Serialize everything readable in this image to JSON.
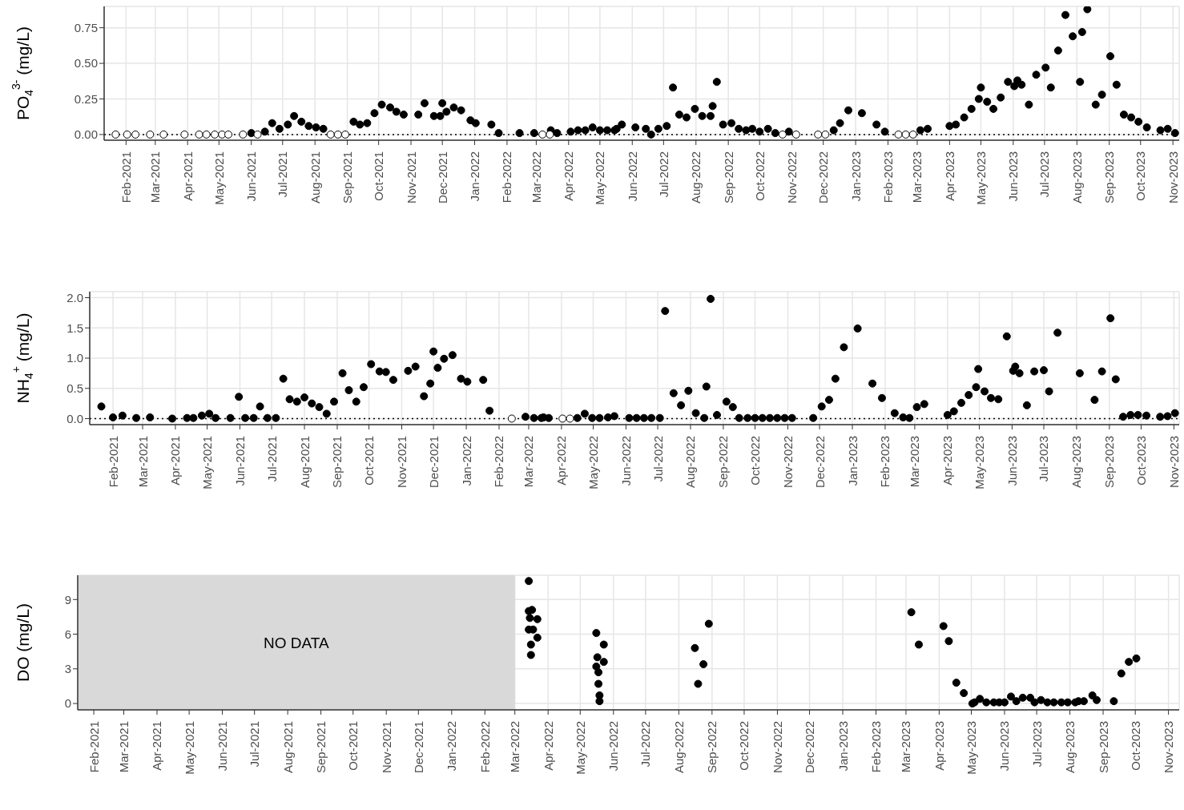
{
  "chart_data": [
    {
      "type": "scatter",
      "ylabel": "PO$_{4}$$^{3-}$ (mg/L)",
      "marker": "circle",
      "grid": true,
      "xlim": [
        "2021-01-11",
        "2023-11-07"
      ],
      "ylim": [
        -0.04,
        0.9
      ],
      "yticks": [
        {
          "value": 0,
          "label": "0.00"
        },
        {
          "value": 0.25,
          "label": "0.25"
        },
        {
          "value": 0.5,
          "label": "0.50"
        },
        {
          "value": 0.75,
          "label": "0.75"
        }
      ],
      "xticks": [
        {
          "value": "2021-02-01",
          "label": "Feb-2021"
        },
        {
          "value": "2021-03-01",
          "label": "Mar-2021"
        },
        {
          "value": "2021-04-01",
          "label": "Apr-2021"
        },
        {
          "value": "2021-05-01",
          "label": "May-2021"
        },
        {
          "value": "2021-06-01",
          "label": "Jun-2021"
        },
        {
          "value": "2021-07-01",
          "label": "Jul-2021"
        },
        {
          "value": "2021-08-01",
          "label": "Aug-2021"
        },
        {
          "value": "2021-09-01",
          "label": "Sep-2021"
        },
        {
          "value": "2021-10-01",
          "label": "Oct-2021"
        },
        {
          "value": "2021-11-01",
          "label": "Nov-2021"
        },
        {
          "value": "2021-12-01",
          "label": "Dec-2021"
        },
        {
          "value": "2022-01-01",
          "label": "Jan-2022"
        },
        {
          "value": "2022-02-01",
          "label": "Feb-2022"
        },
        {
          "value": "2022-03-01",
          "label": "Mar-2022"
        },
        {
          "value": "2022-04-01",
          "label": "Apr-2022"
        },
        {
          "value": "2022-05-01",
          "label": "May-2022"
        },
        {
          "value": "2022-06-01",
          "label": "Jun-2022"
        },
        {
          "value": "2022-07-01",
          "label": "Jul-2022"
        },
        {
          "value": "2022-08-01",
          "label": "Aug-2022"
        },
        {
          "value": "2022-09-01",
          "label": "Sep-2022"
        },
        {
          "value": "2022-10-01",
          "label": "Oct-2022"
        },
        {
          "value": "2022-11-01",
          "label": "Nov-2022"
        },
        {
          "value": "2022-12-01",
          "label": "Dec-2022"
        },
        {
          "value": "2023-01-01",
          "label": "Jan-2023"
        },
        {
          "value": "2023-02-01",
          "label": "Feb-2023"
        },
        {
          "value": "2023-03-01",
          "label": "Mar-2023"
        },
        {
          "value": "2023-04-01",
          "label": "Apr-2023"
        },
        {
          "value": "2023-05-01",
          "label": "May-2023"
        },
        {
          "value": "2023-06-01",
          "label": "Jun-2023"
        },
        {
          "value": "2023-07-01",
          "label": "Jul-2023"
        },
        {
          "value": "2023-08-01",
          "label": "Aug-2023"
        },
        {
          "value": "2023-09-01",
          "label": "Sep-2023"
        },
        {
          "value": "2023-10-01",
          "label": "Oct-2023"
        },
        {
          "value": "2023-11-01",
          "label": "Nov-2023"
        }
      ],
      "ref_lines": [
        {
          "axis": "y",
          "value": 0,
          "line_style": "dotted",
          "color": "#000000"
        }
      ],
      "series": [
        {
          "color": "#000000",
          "x": [
            "2021-06-01",
            "2021-06-14",
            "2021-06-21",
            "2021-06-28",
            "2021-07-06",
            "2021-07-12",
            "2021-07-19",
            "2021-07-26",
            "2021-08-02",
            "2021-08-09",
            "2021-09-07",
            "2021-09-13",
            "2021-09-20",
            "2021-09-27",
            "2021-10-04",
            "2021-10-12",
            "2021-10-18",
            "2021-10-25",
            "2021-11-08",
            "2021-11-14",
            "2021-11-23",
            "2021-11-29",
            "2021-12-01",
            "2021-12-05",
            "2021-12-12",
            "2021-12-19",
            "2021-12-28",
            "2022-01-02",
            "2022-01-17",
            "2022-01-24",
            "2022-02-13",
            "2022-02-27",
            "2022-03-15",
            "2022-03-21",
            "2022-04-03",
            "2022-04-10",
            "2022-04-17",
            "2022-04-24",
            "2022-05-01",
            "2022-05-08",
            "2022-05-15",
            "2022-05-17",
            "2022-05-22",
            "2022-06-04",
            "2022-06-14",
            "2022-06-19",
            "2022-06-26",
            "2022-07-04",
            "2022-07-10",
            "2022-07-16",
            "2022-07-23",
            "2022-07-31",
            "2022-08-07",
            "2022-08-15",
            "2022-08-17",
            "2022-08-21",
            "2022-08-27",
            "2022-09-04",
            "2022-09-11",
            "2022-09-18",
            "2022-09-24",
            "2022-10-01",
            "2022-10-09",
            "2022-10-16",
            "2022-10-29",
            "2022-12-11",
            "2022-12-17",
            "2022-12-25",
            "2023-01-07",
            "2023-01-21",
            "2023-01-29",
            "2023-03-04",
            "2023-03-11",
            "2023-04-01",
            "2023-04-07",
            "2023-04-15",
            "2023-04-22",
            "2023-04-29",
            "2023-05-01",
            "2023-05-07",
            "2023-05-13",
            "2023-05-20",
            "2023-05-27",
            "2023-06-02",
            "2023-06-05",
            "2023-06-09",
            "2023-06-16",
            "2023-06-23",
            "2023-07-02",
            "2023-07-07",
            "2023-07-14",
            "2023-07-21",
            "2023-07-28",
            "2023-08-04",
            "2023-08-06",
            "2023-08-11",
            "2023-08-19",
            "2023-08-25",
            "2023-09-02",
            "2023-09-08",
            "2023-09-15",
            "2023-09-22",
            "2023-09-29",
            "2023-10-07",
            "2023-10-20",
            "2023-10-27",
            "2023-11-03"
          ],
          "values": [
            0.01,
            0.02,
            0.08,
            0.04,
            0.07,
            0.13,
            0.09,
            0.06,
            0.05,
            0.04,
            0.09,
            0.07,
            0.08,
            0.15,
            0.21,
            0.19,
            0.16,
            0.14,
            0.14,
            0.22,
            0.13,
            0.13,
            0.22,
            0.16,
            0.19,
            0.17,
            0.1,
            0.08,
            0.07,
            0.01,
            0.01,
            0.01,
            0.03,
            0.01,
            0.02,
            0.03,
            0.03,
            0.05,
            0.03,
            0.03,
            0.03,
            0.04,
            0.07,
            0.05,
            0.04,
            0.0,
            0.04,
            0.06,
            0.33,
            0.14,
            0.12,
            0.18,
            0.13,
            0.13,
            0.2,
            0.37,
            0.07,
            0.08,
            0.04,
            0.03,
            0.04,
            0.02,
            0.04,
            0.01,
            0.02,
            0.03,
            0.08,
            0.17,
            0.15,
            0.07,
            0.02,
            0.03,
            0.04,
            0.06,
            0.07,
            0.12,
            0.18,
            0.25,
            0.33,
            0.23,
            0.18,
            0.26,
            0.37,
            0.34,
            0.38,
            0.35,
            0.21,
            0.42,
            0.47,
            0.33,
            0.59,
            0.84,
            0.69,
            0.37,
            0.72,
            0.88,
            0.21,
            0.28,
            0.55,
            0.35,
            0.14,
            0.12,
            0.09,
            0.05,
            0.03,
            0.04,
            0.01
          ]
        },
        {
          "color": "#ffffff",
          "x": [
            "2021-01-22",
            "2021-02-02",
            "2021-02-10",
            "2021-02-24",
            "2021-03-09",
            "2021-03-29",
            "2021-04-12",
            "2021-04-19",
            "2021-04-27",
            "2021-05-04",
            "2021-05-10",
            "2021-05-24",
            "2021-06-07",
            "2021-08-16",
            "2021-08-23",
            "2021-08-30",
            "2022-03-07",
            "2022-03-14",
            "2022-10-23",
            "2022-11-05",
            "2022-11-26",
            "2022-12-03",
            "2023-02-11",
            "2023-02-18",
            "2023-02-25"
          ],
          "values": [
            0,
            0,
            0,
            0,
            0,
            0,
            0,
            0,
            0,
            0,
            0,
            0,
            0,
            0,
            0,
            0,
            0,
            0,
            0,
            0,
            0,
            0,
            0,
            0,
            0
          ]
        }
      ]
    },
    {
      "type": "scatter",
      "ylabel": "NH$_{4}$$^{+}$ (mg/L)",
      "marker": "circle",
      "grid": true,
      "xlim": [
        "2021-01-10",
        "2023-11-06"
      ],
      "ylim": [
        -0.1,
        2.1
      ],
      "yticks": [
        {
          "value": 0,
          "label": "0.0"
        },
        {
          "value": 0.5,
          "label": "0.5"
        },
        {
          "value": 1,
          "label": "1.0"
        },
        {
          "value": 1.5,
          "label": "1.5"
        },
        {
          "value": 2,
          "label": "2.0"
        }
      ],
      "xticks": [
        {
          "value": "2021-02-01",
          "label": "Feb-2021"
        },
        {
          "value": "2021-03-01",
          "label": "Mar-2021"
        },
        {
          "value": "2021-04-01",
          "label": "Apr-2021"
        },
        {
          "value": "2021-05-01",
          "label": "May-2021"
        },
        {
          "value": "2021-06-01",
          "label": "Jun-2021"
        },
        {
          "value": "2021-07-01",
          "label": "Jul-2021"
        },
        {
          "value": "2021-08-01",
          "label": "Aug-2021"
        },
        {
          "value": "2021-09-01",
          "label": "Sep-2021"
        },
        {
          "value": "2021-10-01",
          "label": "Oct-2021"
        },
        {
          "value": "2021-11-01",
          "label": "Nov-2021"
        },
        {
          "value": "2021-12-01",
          "label": "Dec-2021"
        },
        {
          "value": "2022-01-01",
          "label": "Jan-2022"
        },
        {
          "value": "2022-02-01",
          "label": "Feb-2022"
        },
        {
          "value": "2022-03-01",
          "label": "Mar-2022"
        },
        {
          "value": "2022-04-01",
          "label": "Apr-2022"
        },
        {
          "value": "2022-05-01",
          "label": "May-2022"
        },
        {
          "value": "2022-06-01",
          "label": "Jun-2022"
        },
        {
          "value": "2022-07-01",
          "label": "Jul-2022"
        },
        {
          "value": "2022-08-01",
          "label": "Aug-2022"
        },
        {
          "value": "2022-09-01",
          "label": "Sep-2022"
        },
        {
          "value": "2022-10-01",
          "label": "Oct-2022"
        },
        {
          "value": "2022-11-01",
          "label": "Nov-2022"
        },
        {
          "value": "2022-12-01",
          "label": "Dec-2022"
        },
        {
          "value": "2023-01-01",
          "label": "Jan-2023"
        },
        {
          "value": "2023-02-01",
          "label": "Feb-2023"
        },
        {
          "value": "2023-03-01",
          "label": "Mar-2023"
        },
        {
          "value": "2023-04-01",
          "label": "Apr-2023"
        },
        {
          "value": "2023-05-01",
          "label": "May-2023"
        },
        {
          "value": "2023-06-01",
          "label": "Jun-2023"
        },
        {
          "value": "2023-07-01",
          "label": "Jul-2023"
        },
        {
          "value": "2023-08-01",
          "label": "Aug-2023"
        },
        {
          "value": "2023-09-01",
          "label": "Sep-2023"
        },
        {
          "value": "2023-10-01",
          "label": "Oct-2023"
        },
        {
          "value": "2023-11-01",
          "label": "Nov-2023"
        }
      ],
      "ref_lines": [
        {
          "axis": "y",
          "value": 0,
          "line_style": "dotted",
          "color": "#000000"
        }
      ],
      "series": [
        {
          "color": "#000000",
          "x": [
            "2021-01-21",
            "2021-02-01",
            "2021-02-10",
            "2021-02-23",
            "2021-03-08",
            "2021-03-29",
            "2021-04-12",
            "2021-04-18",
            "2021-04-26",
            "2021-05-03",
            "2021-05-09",
            "2021-05-23",
            "2021-05-31",
            "2021-06-06",
            "2021-06-14",
            "2021-06-20",
            "2021-06-27",
            "2021-07-05",
            "2021-07-12",
            "2021-07-18",
            "2021-07-25",
            "2021-08-01",
            "2021-08-08",
            "2021-08-15",
            "2021-08-22",
            "2021-08-29",
            "2021-09-06",
            "2021-09-12",
            "2021-09-19",
            "2021-09-26",
            "2021-10-03",
            "2021-10-11",
            "2021-10-17",
            "2021-10-24",
            "2021-11-07",
            "2021-11-14",
            "2021-11-22",
            "2021-11-28",
            "2021-12-01",
            "2021-12-05",
            "2021-12-11",
            "2021-12-19",
            "2021-12-27",
            "2022-01-02",
            "2022-01-17",
            "2022-01-23",
            "2022-02-26",
            "2022-03-06",
            "2022-03-13",
            "2022-03-15",
            "2022-03-20",
            "2022-04-16",
            "2022-04-23",
            "2022-04-30",
            "2022-05-07",
            "2022-05-15",
            "2022-05-21",
            "2022-06-04",
            "2022-06-11",
            "2022-06-18",
            "2022-06-25",
            "2022-07-03",
            "2022-07-08",
            "2022-07-16",
            "2022-07-23",
            "2022-07-30",
            "2022-08-06",
            "2022-08-14",
            "2022-08-16",
            "2022-08-20",
            "2022-08-26",
            "2022-09-04",
            "2022-09-10",
            "2022-09-16",
            "2022-09-24",
            "2022-10-01",
            "2022-10-08",
            "2022-10-15",
            "2022-10-22",
            "2022-10-29",
            "2022-11-05",
            "2022-11-25",
            "2022-12-03",
            "2022-12-10",
            "2022-12-16",
            "2022-12-24",
            "2023-01-06",
            "2023-01-20",
            "2023-01-29",
            "2023-02-10",
            "2023-02-18",
            "2023-02-24",
            "2023-03-03",
            "2023-03-10",
            "2023-04-01",
            "2023-04-07",
            "2023-04-14",
            "2023-04-21",
            "2023-04-28",
            "2023-04-30",
            "2023-05-06",
            "2023-05-12",
            "2023-05-19",
            "2023-05-27",
            "2023-06-02",
            "2023-06-04",
            "2023-06-08",
            "2023-06-15",
            "2023-06-22",
            "2023-07-01",
            "2023-07-06",
            "2023-07-14",
            "2023-08-04",
            "2023-08-18",
            "2023-08-25",
            "2023-09-02",
            "2023-09-07",
            "2023-09-14",
            "2023-09-21",
            "2023-09-28",
            "2023-10-06",
            "2023-10-19",
            "2023-10-26",
            "2023-11-02"
          ],
          "values": [
            0.2,
            0.02,
            0.05,
            0.01,
            0.02,
            0.0,
            0.01,
            0.01,
            0.05,
            0.08,
            0.01,
            0.01,
            0.36,
            0.01,
            0.01,
            0.2,
            0.01,
            0.01,
            0.66,
            0.32,
            0.28,
            0.35,
            0.25,
            0.19,
            0.08,
            0.28,
            0.75,
            0.47,
            0.28,
            0.52,
            0.9,
            0.78,
            0.77,
            0.64,
            0.79,
            0.86,
            0.37,
            0.58,
            1.11,
            0.84,
            0.99,
            1.05,
            0.66,
            0.61,
            0.64,
            0.13,
            0.03,
            0.01,
            0.01,
            0.02,
            0.01,
            0.01,
            0.08,
            0.01,
            0.01,
            0.02,
            0.04,
            0.01,
            0.01,
            0.01,
            0.01,
            0.01,
            1.78,
            0.42,
            0.22,
            0.46,
            0.09,
            0.01,
            0.53,
            1.98,
            0.06,
            0.28,
            0.19,
            0.01,
            0.01,
            0.01,
            0.01,
            0.01,
            0.01,
            0.01,
            0.01,
            0.01,
            0.2,
            0.31,
            0.66,
            1.18,
            1.49,
            0.58,
            0.34,
            0.09,
            0.02,
            0.01,
            0.19,
            0.24,
            0.06,
            0.12,
            0.26,
            0.39,
            0.52,
            0.82,
            0.45,
            0.34,
            0.32,
            1.36,
            0.79,
            0.86,
            0.75,
            0.22,
            0.78,
            0.8,
            0.45,
            1.42,
            0.75,
            0.31,
            0.78,
            1.66,
            0.65,
            0.03,
            0.06,
            0.06,
            0.05,
            0.03,
            0.04,
            0.09
          ]
        },
        {
          "color": "#ffffff",
          "x": [
            "2022-02-13",
            "2022-04-02",
            "2022-04-09"
          ],
          "values": [
            0,
            0,
            0
          ]
        }
      ]
    },
    {
      "type": "scatter",
      "ylabel": "DO (mg/L)",
      "marker": "circle",
      "grid": true,
      "xlim": [
        "2021-01-17",
        "2023-11-11"
      ],
      "ylim": [
        -0.55,
        11.1
      ],
      "yticks": [
        0,
        3,
        6,
        9
      ],
      "xticks": [
        {
          "value": "2021-02-01",
          "label": "Feb-2021"
        },
        {
          "value": "2021-03-01",
          "label": "Mar-2021"
        },
        {
          "value": "2021-04-01",
          "label": "Apr-2021"
        },
        {
          "value": "2021-05-01",
          "label": "May-2021"
        },
        {
          "value": "2021-06-01",
          "label": "Jun-2021"
        },
        {
          "value": "2021-07-01",
          "label": "Jul-2021"
        },
        {
          "value": "2021-08-01",
          "label": "Aug-2021"
        },
        {
          "value": "2021-09-01",
          "label": "Sep-2021"
        },
        {
          "value": "2021-10-01",
          "label": "Oct-2021"
        },
        {
          "value": "2021-11-01",
          "label": "Nov-2021"
        },
        {
          "value": "2021-12-01",
          "label": "Dec-2021"
        },
        {
          "value": "2022-01-01",
          "label": "Jan-2022"
        },
        {
          "value": "2022-02-01",
          "label": "Feb-2022"
        },
        {
          "value": "2022-03-01",
          "label": "Mar-2022"
        },
        {
          "value": "2022-04-01",
          "label": "Apr-2022"
        },
        {
          "value": "2022-05-01",
          "label": "May-2022"
        },
        {
          "value": "2022-06-01",
          "label": "Jun-2022"
        },
        {
          "value": "2022-07-01",
          "label": "Jul-2022"
        },
        {
          "value": "2022-08-01",
          "label": "Aug-2022"
        },
        {
          "value": "2022-09-01",
          "label": "Sep-2022"
        },
        {
          "value": "2022-10-01",
          "label": "Oct-2022"
        },
        {
          "value": "2022-11-01",
          "label": "Nov-2022"
        },
        {
          "value": "2022-12-01",
          "label": "Dec-2022"
        },
        {
          "value": "2023-01-01",
          "label": "Jan-2023"
        },
        {
          "value": "2023-02-01",
          "label": "Feb-2023"
        },
        {
          "value": "2023-03-01",
          "label": "Mar-2023"
        },
        {
          "value": "2023-04-01",
          "label": "Apr-2023"
        },
        {
          "value": "2023-05-01",
          "label": "May-2023"
        },
        {
          "value": "2023-06-01",
          "label": "Jun-2023"
        },
        {
          "value": "2023-07-01",
          "label": "Jul-2023"
        },
        {
          "value": "2023-08-01",
          "label": "Aug-2023"
        },
        {
          "value": "2023-09-01",
          "label": "Sep-2023"
        },
        {
          "value": "2023-10-01",
          "label": "Oct-2023"
        },
        {
          "value": "2023-11-01",
          "label": "Nov-2023"
        }
      ],
      "bands": [
        {
          "axis": "x",
          "from": "2021-01-17",
          "to": "2022-03-01",
          "label": "NO DATA",
          "color": "#d9d9d9"
        }
      ],
      "series": [
        {
          "color": "#000000",
          "x": [
            "2022-03-14",
            "2022-03-14",
            "2022-03-17",
            "2022-03-15",
            "2022-03-22",
            "2022-03-14",
            "2022-03-18",
            "2022-03-22",
            "2022-03-16",
            "2022-03-16",
            "2022-05-16",
            "2022-05-23",
            "2022-05-17",
            "2022-05-23",
            "2022-05-16",
            "2022-05-18",
            "2022-05-18",
            "2022-05-19",
            "2022-05-19",
            "2022-08-16",
            "2022-08-29",
            "2022-08-24",
            "2022-08-19",
            "2023-03-06",
            "2023-03-13",
            "2023-04-05",
            "2023-04-10",
            "2023-04-17",
            "2023-04-24",
            "2023-05-02",
            "2023-05-04",
            "2023-05-09",
            "2023-05-15",
            "2023-05-22",
            "2023-05-27",
            "2023-06-01",
            "2023-06-07",
            "2023-06-12",
            "2023-06-18",
            "2023-06-25",
            "2023-06-29",
            "2023-07-05",
            "2023-07-11",
            "2023-07-17",
            "2023-07-24",
            "2023-07-30",
            "2023-08-06",
            "2023-08-09",
            "2023-08-14",
            "2023-08-22",
            "2023-08-26",
            "2023-09-11",
            "2023-09-18",
            "2023-09-25",
            "2023-10-02"
          ],
          "values": [
            10.6,
            8.0,
            8.1,
            7.4,
            7.3,
            6.4,
            6.4,
            5.7,
            5.1,
            4.2,
            6.1,
            5.1,
            4.0,
            3.6,
            3.2,
            2.7,
            1.7,
            0.7,
            0.2,
            4.8,
            6.9,
            3.4,
            1.7,
            7.9,
            5.1,
            6.7,
            5.4,
            1.8,
            0.9,
            0.0,
            0.1,
            0.4,
            0.1,
            0.1,
            0.1,
            0.1,
            0.6,
            0.2,
            0.5,
            0.5,
            0.1,
            0.3,
            0.1,
            0.1,
            0.1,
            0.1,
            0.1,
            0.2,
            0.2,
            0.7,
            0.3,
            0.2,
            2.6,
            3.6,
            3.9
          ]
        }
      ]
    }
  ]
}
